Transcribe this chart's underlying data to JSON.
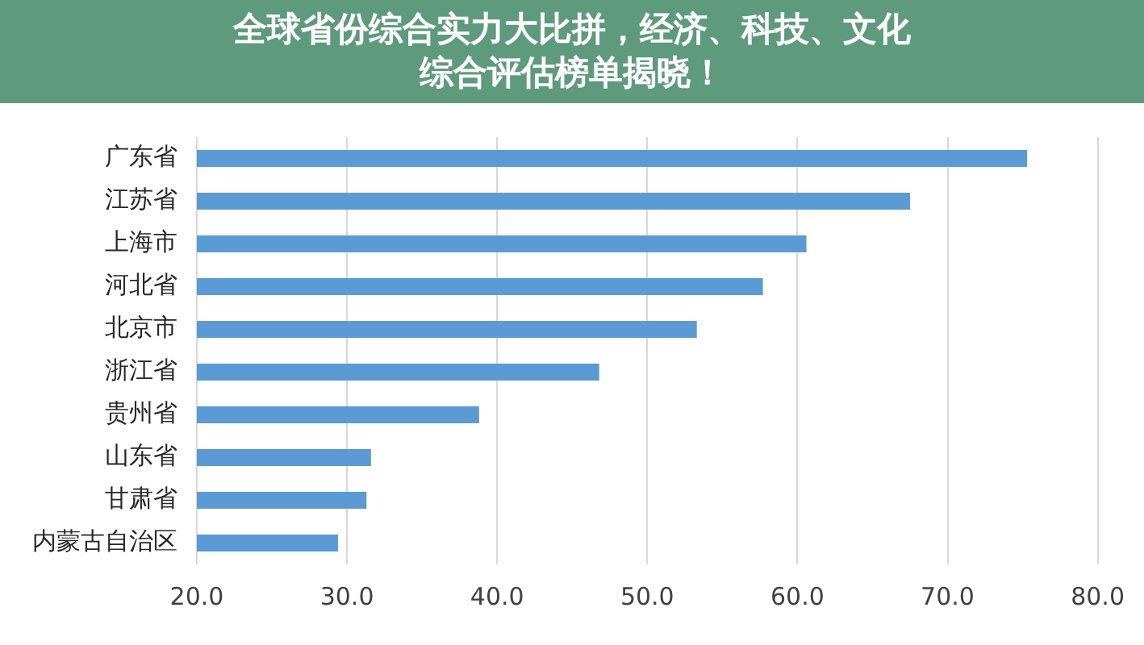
{
  "chart_data": {
    "type": "bar",
    "orientation": "horizontal",
    "title": "全球省份综合实力大比拼，经济、科技、文化综合评估榜单揭晓！",
    "categories": [
      "广东省",
      "江苏省",
      "上海市",
      "河北省",
      "北京市",
      "浙江省",
      "贵州省",
      "山东省",
      "甘肃省",
      "内蒙古自治区"
    ],
    "values": [
      75.3,
      67.5,
      60.6,
      57.7,
      53.3,
      46.8,
      38.8,
      31.6,
      31.3,
      29.4
    ],
    "color": "#5b9bd5",
    "xlim": [
      20,
      80
    ],
    "xticks": [
      {
        "value": 20,
        "label": "20.0"
      },
      {
        "value": 30,
        "label": "30.0"
      },
      {
        "value": 40,
        "label": "40.0"
      },
      {
        "value": 50,
        "label": "50.0"
      },
      {
        "value": 60,
        "label": "60.0"
      },
      {
        "value": 70,
        "label": "70.0"
      },
      {
        "value": 80,
        "label": "80.0"
      }
    ],
    "grid": "x"
  }
}
